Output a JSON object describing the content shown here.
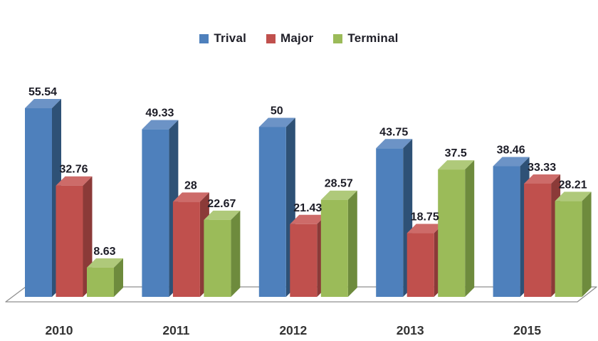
{
  "chart_data": {
    "type": "bar",
    "variant": "3d-clustered",
    "title": "",
    "xlabel": "",
    "ylabel": "",
    "categories": [
      "2010",
      "2011",
      "2012",
      "2013",
      "2015"
    ],
    "series": [
      {
        "name": "Trival",
        "color": "#4e80bc",
        "side_color": "#2e5176",
        "top_color": "#6c93c6",
        "values": [
          55.54,
          49.33,
          50,
          43.75,
          38.46
        ]
      },
      {
        "name": "Major",
        "color": "#c0504d",
        "side_color": "#8b3a38",
        "top_color": "#cd6b69",
        "values": [
          32.76,
          28,
          21.43,
          18.75,
          33.33
        ]
      },
      {
        "name": "Terminal",
        "color": "#9bbb59",
        "side_color": "#6e8b3d",
        "top_color": "#afc97a",
        "values": [
          8.63,
          22.67,
          28.57,
          37.5,
          28.21
        ]
      }
    ],
    "ylim": [
      0,
      60
    ],
    "grid": false,
    "y_axis_visible": false,
    "data_labels": true,
    "legend_position": "top-center",
    "data_label_color": "#1c1c26",
    "category_label_color": "#333333",
    "floor_line_color": "#8f8f8f",
    "background": "#ffffff"
  }
}
